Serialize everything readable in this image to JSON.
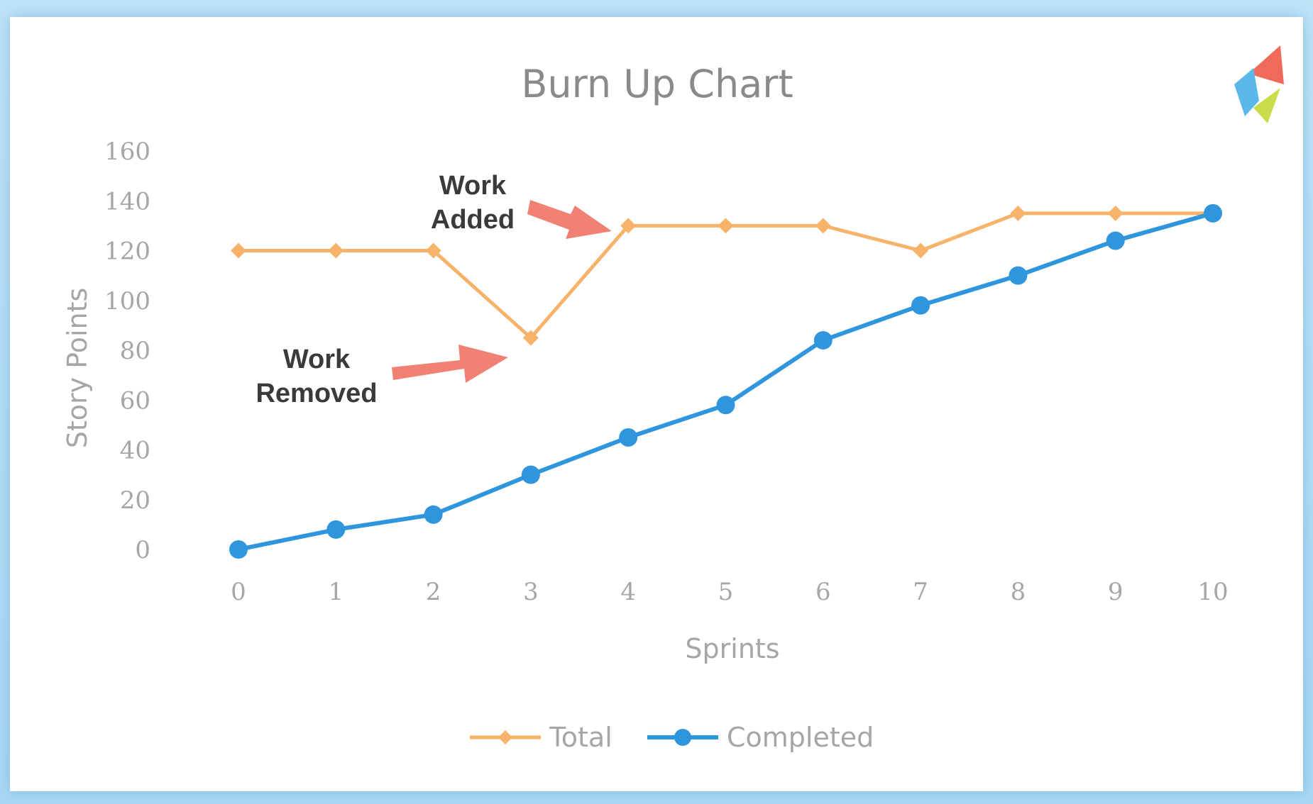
{
  "chart_data": {
    "type": "line",
    "title": "Burn Up Chart",
    "xlabel": "Sprints",
    "ylabel": "Story Points",
    "x": [
      0,
      1,
      2,
      3,
      4,
      5,
      6,
      7,
      8,
      9,
      10
    ],
    "y_ticks": [
      "0",
      "20",
      "40",
      "60",
      "80",
      "100",
      "120",
      "140",
      "160"
    ],
    "ylim": [
      0,
      160
    ],
    "grid": false,
    "legend_position": "bottom",
    "series": [
      {
        "name": "Total",
        "color": "#f8b36a",
        "marker": "diamond",
        "values": [
          120,
          120,
          120,
          85,
          130,
          130,
          130,
          120,
          135,
          135,
          135
        ]
      },
      {
        "name": "Completed",
        "color": "#2f96dd",
        "marker": "circle",
        "values": [
          0,
          8,
          14,
          30,
          45,
          58,
          84,
          98,
          110,
          124,
          135
        ]
      }
    ],
    "annotations": [
      {
        "line1": "Work",
        "line2": "Added",
        "arrow_color": "#ef7a6b"
      },
      {
        "line1": "Work",
        "line2": "Removed",
        "arrow_color": "#ef7a6b"
      }
    ]
  }
}
